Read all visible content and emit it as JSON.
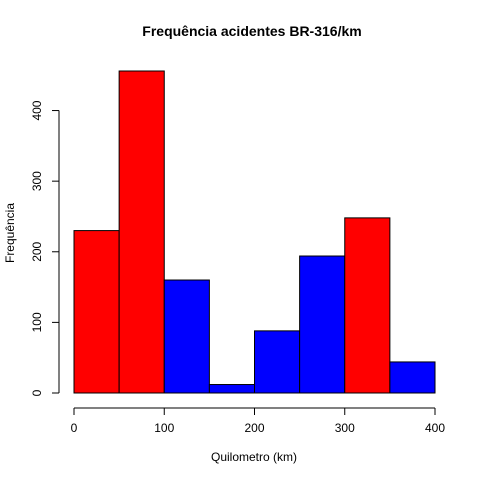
{
  "chart_data": {
    "type": "bar",
    "subtype": "histogram",
    "title": "Frequência acidentes BR-316/km",
    "xlabel": "Quilometro (km)",
    "ylabel": "Frequência",
    "bins": [
      {
        "start": 0,
        "end": 50,
        "count": 230,
        "color": "#ff0000"
      },
      {
        "start": 50,
        "end": 100,
        "count": 456,
        "color": "#ff0000"
      },
      {
        "start": 100,
        "end": 150,
        "count": 160,
        "color": "#0000ff"
      },
      {
        "start": 150,
        "end": 200,
        "count": 12,
        "color": "#0000ff"
      },
      {
        "start": 200,
        "end": 250,
        "count": 88,
        "color": "#0000ff"
      },
      {
        "start": 250,
        "end": 300,
        "count": 194,
        "color": "#0000ff"
      },
      {
        "start": 300,
        "end": 350,
        "count": 248,
        "color": "#ff0000"
      },
      {
        "start": 350,
        "end": 400,
        "count": 44,
        "color": "#0000ff"
      }
    ],
    "xlim": [
      0,
      400
    ],
    "ylim": [
      0,
      456
    ],
    "x_ticks": [
      0,
      100,
      200,
      300,
      400
    ],
    "x_tick_labels": [
      "0",
      "100",
      "200",
      "300",
      "400"
    ],
    "y_ticks": [
      0,
      100,
      200,
      300,
      400
    ],
    "y_tick_labels": [
      "0",
      "100",
      "200",
      "300",
      "400"
    ],
    "grid": false,
    "legend": "none",
    "colors": {
      "high": "#ff0000",
      "low": "#0000ff",
      "border": "#000000"
    }
  }
}
